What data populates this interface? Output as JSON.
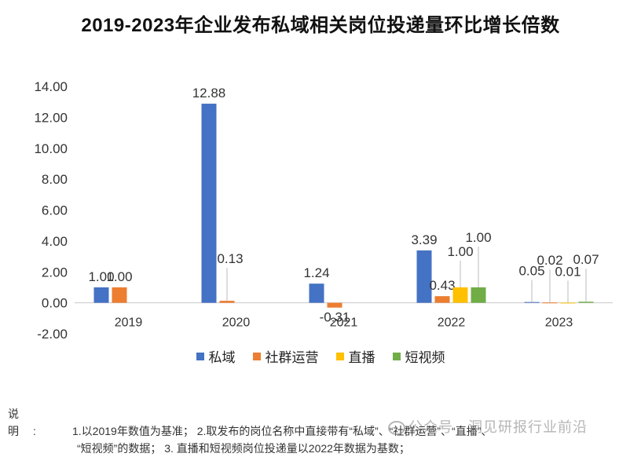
{
  "title": "2019-2023年企业发布私域相关岗位投递量环比增长倍数",
  "chart_data": {
    "type": "bar",
    "title": "2019-2023年企业发布私域相关岗位投递量环比增长倍数",
    "categories": [
      "2019",
      "2020",
      "2021",
      "2022",
      "2023"
    ],
    "series": [
      {
        "name": "私域",
        "color": "#4472C4",
        "values": [
          1.0,
          12.88,
          1.24,
          3.39,
          0.05
        ],
        "labels": [
          "1.00",
          "12.88",
          "1.24",
          "3.39",
          "0.05"
        ]
      },
      {
        "name": "社群运营",
        "color": "#ED7D31",
        "values": [
          1.0,
          0.13,
          -0.31,
          0.43,
          0.02
        ],
        "labels": [
          "1.00",
          "0.13",
          "-0.31",
          "0.43",
          "0.02"
        ]
      },
      {
        "name": "直播",
        "color": "#FFC000",
        "values": [
          null,
          null,
          null,
          1.0,
          0.01
        ],
        "labels": [
          null,
          null,
          null,
          "1.00",
          "0.01"
        ]
      },
      {
        "name": "短视频",
        "color": "#70AD47",
        "values": [
          null,
          null,
          null,
          1.0,
          0.07
        ],
        "labels": [
          null,
          null,
          null,
          "1.00",
          "0.07"
        ]
      }
    ],
    "yticks": [
      "14.00",
      "12.00",
      "10.00",
      "8.00",
      "6.00",
      "4.00",
      "2.00",
      "0.00",
      "-2.00"
    ],
    "ylim": [
      -2,
      14
    ],
    "legend_position": "bottom"
  },
  "note": {
    "lead": "说明:",
    "line1": "1.以2019年数值为基准； 2.取发布的岗位名称中直接带有“私域”、“社群运营”、“直播”、",
    "line2": "“短视频”的数据； 3. 直播和短视频岗位投递量以2022年数据为基数；"
  },
  "watermark": "公众号 · 洞见研报行业前沿"
}
